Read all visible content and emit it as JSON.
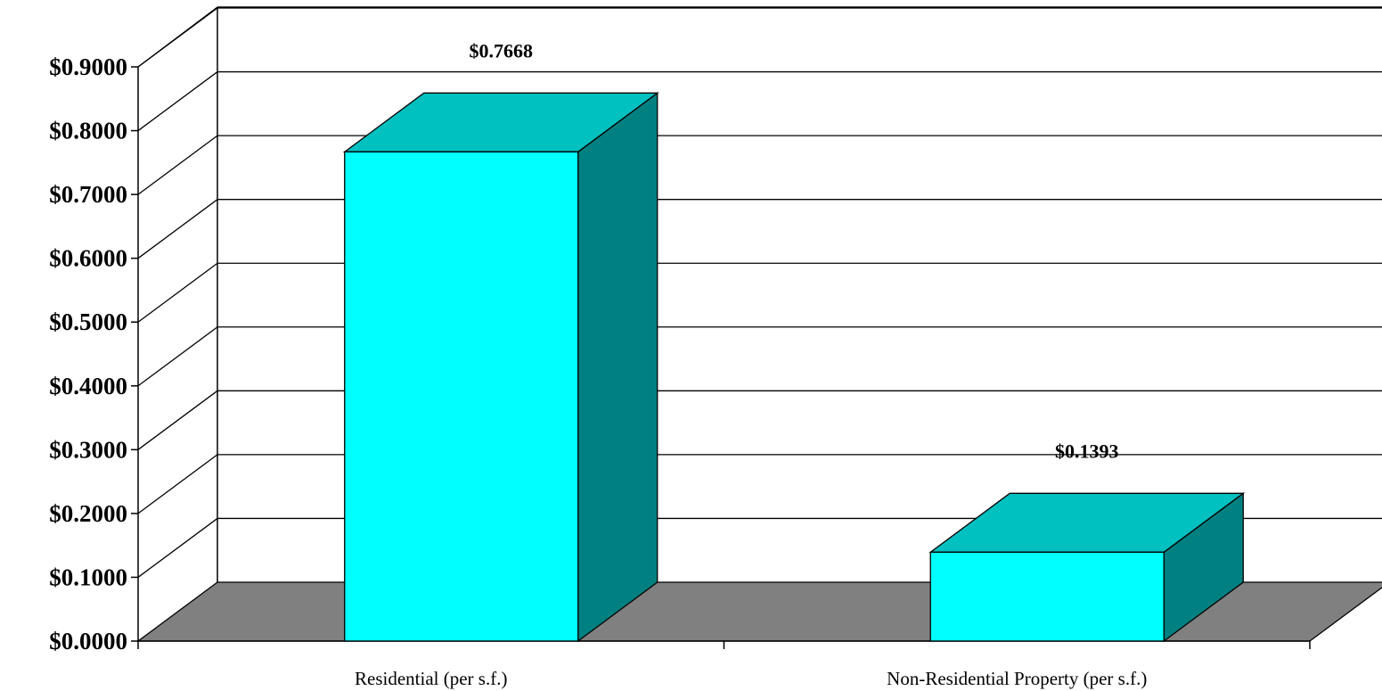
{
  "chart_data": {
    "type": "bar",
    "three_d": true,
    "categories": [
      "Residential (per s.f.)",
      "Non-Residential Property (per s.f.)"
    ],
    "values": [
      0.7668,
      0.1393
    ],
    "data_labels": [
      "$0.7668",
      "$0.1393"
    ],
    "title": "",
    "xlabel": "",
    "ylabel": "",
    "ylim": [
      0,
      0.9
    ],
    "yticks": [
      0,
      0.1,
      0.2,
      0.3,
      0.4,
      0.5,
      0.6,
      0.7,
      0.8,
      0.9
    ],
    "ytick_labels": [
      "$0.0000",
      "$0.1000",
      "$0.2000",
      "$0.3000",
      "$0.4000",
      "$0.5000",
      "$0.6000",
      "$0.7000",
      "$0.8000",
      "$0.9000"
    ],
    "grid": true,
    "legend": "none",
    "colors": {
      "bar_front": "#00ffff",
      "bar_top": "#00c0c0",
      "bar_side": "#008080",
      "floor": "#808080",
      "background": "#ffffff",
      "lines": "#000000"
    }
  }
}
